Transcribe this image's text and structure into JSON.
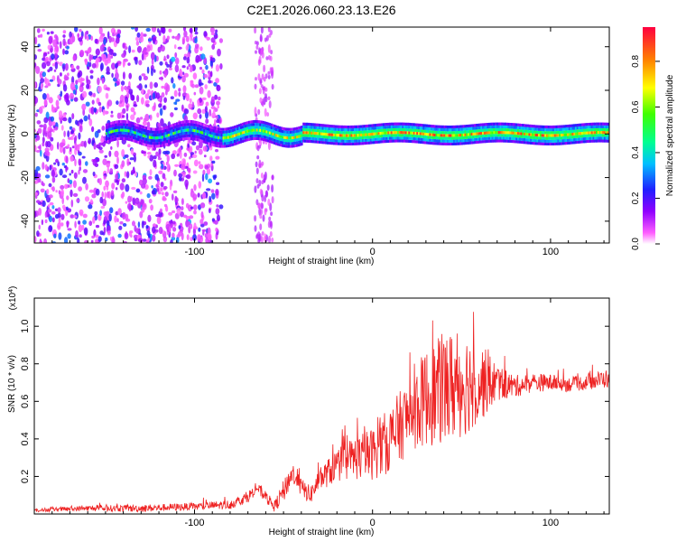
{
  "title": "C2E1.2026.060.23.13.E26",
  "chart_data": [
    {
      "type": "heatmap",
      "xlabel": "Height of straight line (km)",
      "ylabel": "Frequency (Hz)",
      "xlim": [
        -190,
        133
      ],
      "ylim": [
        -50,
        49
      ],
      "x_ticks": [
        -100,
        0,
        100
      ],
      "x_tick_labels": [
        "-100",
        "0",
        "100"
      ],
      "y_ticks": [
        -40,
        -20,
        0,
        20,
        40
      ],
      "y_tick_labels": [
        "-40",
        "-20",
        "0",
        "20",
        "40"
      ],
      "colorbar": {
        "label": "Normalized spectral amplitude",
        "range": [
          0.0,
          0.95
        ],
        "ticks": [
          0.0,
          0.2,
          0.4,
          0.6,
          0.8
        ],
        "tick_labels": [
          "0.0",
          "0.2",
          "0.4",
          "0.6",
          "0.8"
        ],
        "colors": [
          "#ffffff",
          "#ff40ff",
          "#8000ff",
          "#2020ff",
          "#00c0ff",
          "#00ff80",
          "#40ff00",
          "#ffff00",
          "#ff8000",
          "#ff0040"
        ]
      },
      "regions": [
        {
          "x": [
            -190,
            -85
          ],
          "description": "broadband scattered noise, low amplitude (0.05-0.35)"
        },
        {
          "x": [
            -85,
            133
          ],
          "y_center": 0,
          "half_width_hz": 4,
          "description": "narrow signal band around 0 Hz, amplitude rising to 0.6-0.9"
        }
      ],
      "grid": false
    },
    {
      "type": "line",
      "xlabel": "Height of straight line (km)",
      "ylabel": "SNR (10 * v/v)",
      "y_multiplier": "(x10^4)",
      "xlim": [
        -190,
        133
      ],
      "ylim": [
        0,
        1.15
      ],
      "x_ticks": [
        -100,
        0,
        100
      ],
      "x_tick_labels": [
        "-100",
        "0",
        "100"
      ],
      "y_ticks": [
        0.2,
        0.4,
        0.6,
        0.8,
        1.0
      ],
      "y_tick_labels": [
        "0.2",
        "0.4",
        "0.6",
        "0.8",
        "1.0"
      ],
      "color": "#ee2222",
      "x": [
        -190,
        -160,
        -130,
        -100,
        -80,
        -70,
        -65,
        -60,
        -55,
        -50,
        -45,
        -40,
        -35,
        -30,
        -20,
        -10,
        0,
        10,
        20,
        30,
        40,
        50,
        60,
        70,
        80,
        90,
        100,
        110,
        120,
        130
      ],
      "y": [
        0.02,
        0.03,
        0.03,
        0.04,
        0.05,
        0.09,
        0.14,
        0.09,
        0.04,
        0.12,
        0.22,
        0.14,
        0.1,
        0.18,
        0.26,
        0.3,
        0.32,
        0.4,
        0.52,
        0.62,
        0.66,
        0.7,
        0.7,
        0.7,
        0.68,
        0.7,
        0.7,
        0.69,
        0.7,
        0.72
      ],
      "noise_amplitude": [
        0.01,
        0.015,
        0.02,
        0.02,
        0.025,
        0.03,
        0.03,
        0.03,
        0.03,
        0.06,
        0.06,
        0.05,
        0.05,
        0.06,
        0.09,
        0.12,
        0.14,
        0.18,
        0.2,
        0.26,
        0.3,
        0.3,
        0.22,
        0.1,
        0.06,
        0.05,
        0.045,
        0.04,
        0.04,
        0.05
      ],
      "grid": false
    }
  ]
}
